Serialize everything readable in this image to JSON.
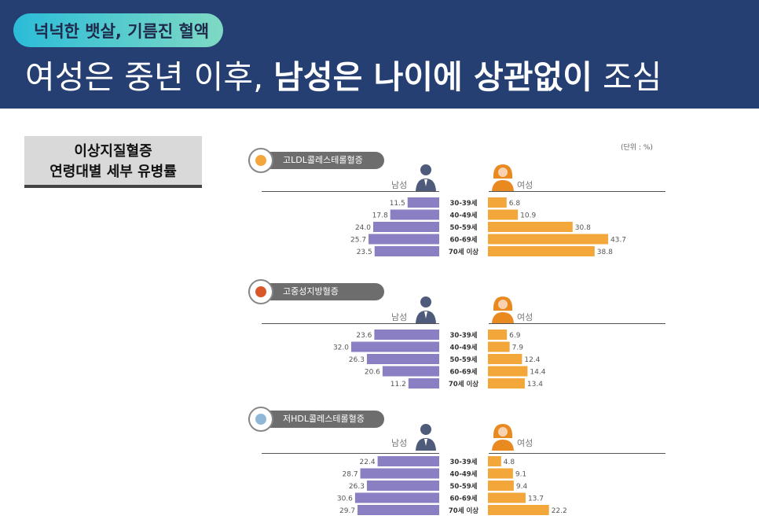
{
  "header": {
    "pill": "넉넉한 뱃살, 기름진 혈액",
    "title_regular_1": "여성은 중년 이후, ",
    "title_bold": "남성은 나이에 상관없이",
    "title_regular_2": " 조심"
  },
  "side_label": {
    "line1": "이상지질혈증",
    "line2": "연령대별 세부 유병률"
  },
  "unit": "(단위 : %)",
  "legend": {
    "male": "남성",
    "female": "여성"
  },
  "colors": {
    "male": "#8a7fc2",
    "female": "#f3a73b",
    "header": "#263f73"
  },
  "chart_data": [
    {
      "type": "bar",
      "title": "고LDL콜레스테롤혈증",
      "categories": [
        "30-39세",
        "40-49세",
        "50-59세",
        "60-69세",
        "70세 이상"
      ],
      "series": [
        {
          "name": "남성",
          "values": [
            11.5,
            17.8,
            24.0,
            25.7,
            23.5
          ]
        },
        {
          "name": "여성",
          "values": [
            6.8,
            10.9,
            30.8,
            43.7,
            38.8
          ]
        }
      ]
    },
    {
      "type": "bar",
      "title": "고중성지방혈증",
      "categories": [
        "30-39세",
        "40-49세",
        "50-59세",
        "60-69세",
        "70세 이상"
      ],
      "series": [
        {
          "name": "남성",
          "values": [
            23.6,
            32.0,
            26.3,
            20.6,
            11.2
          ]
        },
        {
          "name": "여성",
          "values": [
            6.9,
            7.9,
            12.4,
            14.4,
            13.4
          ]
        }
      ]
    },
    {
      "type": "bar",
      "title": "저HDL콜레스테롤혈증",
      "categories": [
        "30-39세",
        "40-49세",
        "50-59세",
        "60-69세",
        "70세 이상"
      ],
      "series": [
        {
          "name": "남성",
          "values": [
            22.4,
            28.7,
            26.3,
            30.6,
            29.7
          ]
        },
        {
          "name": "여성",
          "values": [
            4.8,
            9.1,
            9.4,
            13.7,
            22.2
          ]
        }
      ]
    }
  ]
}
